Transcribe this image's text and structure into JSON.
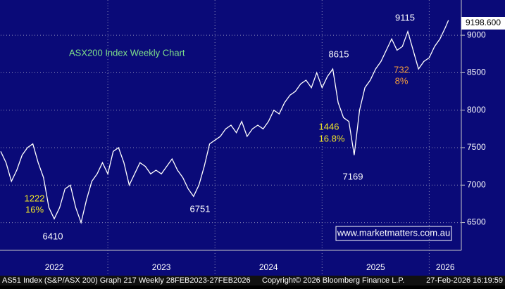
{
  "chart_data": {
    "type": "line",
    "title": "ASX200 Index Weekly Chart",
    "watermark": "www.marketmatters.com.au",
    "footer": [
      "AS51 Index (S&P/ASX 200) Graph 217 Weekly 28FEB2023-27FEB2026",
      "Copyright© 2026 Bloomberg Finance L.P.",
      "27-Feb-2026 16:19:59"
    ],
    "last_value_label": "9198.600",
    "annotations": [
      {
        "text": "9115",
        "kind": "peak"
      },
      {
        "text": "8615",
        "kind": "peak"
      },
      {
        "text": "732",
        "kind": "orange"
      },
      {
        "text": "8%",
        "kind": "orange"
      },
      {
        "text": "1446",
        "kind": "yellow"
      },
      {
        "text": "16.8%",
        "kind": "yellow"
      },
      {
        "text": "7169",
        "kind": "trough"
      },
      {
        "text": "1222",
        "kind": "yellow"
      },
      {
        "text": "16%",
        "kind": "yellow"
      },
      {
        "text": "6410",
        "kind": "trough"
      },
      {
        "text": "6751",
        "kind": "trough"
      }
    ],
    "x": [
      2022.0,
      2022.05,
      2022.1,
      2022.15,
      2022.2,
      2022.25,
      2022.3,
      2022.35,
      2022.4,
      2022.45,
      2022.5,
      2022.55,
      2022.6,
      2022.65,
      2022.7,
      2022.75,
      2022.8,
      2022.85,
      2022.9,
      2022.95,
      2023.0,
      2023.05,
      2023.1,
      2023.15,
      2023.2,
      2023.25,
      2023.3,
      2023.35,
      2023.4,
      2023.45,
      2023.5,
      2023.55,
      2023.6,
      2023.65,
      2023.7,
      2023.75,
      2023.8,
      2023.85,
      2023.9,
      2023.95,
      2024.0,
      2024.05,
      2024.1,
      2024.15,
      2024.2,
      2024.25,
      2024.3,
      2024.35,
      2024.4,
      2024.45,
      2024.5,
      2024.55,
      2024.6,
      2024.65,
      2024.7,
      2024.75,
      2024.8,
      2024.85,
      2024.9,
      2024.95,
      2025.0,
      2025.05,
      2025.1,
      2025.15,
      2025.2,
      2025.25,
      2025.3,
      2025.35,
      2025.4,
      2025.45,
      2025.5,
      2025.55,
      2025.6,
      2025.65,
      2025.7,
      2025.75,
      2025.8,
      2025.85,
      2025.9,
      2025.95,
      2026.0,
      2026.05,
      2026.1,
      2026.15,
      2026.18
    ],
    "series": [
      {
        "name": "AS51 Index",
        "color": "#ffffff",
        "values": [
          7450,
          7300,
          7050,
          7200,
          7400,
          7500,
          7550,
          7300,
          7100,
          6700,
          6550,
          6700,
          6950,
          7000,
          6700,
          6500,
          6800,
          7050,
          7150,
          7300,
          7150,
          7450,
          7500,
          7300,
          7000,
          7150,
          7300,
          7250,
          7150,
          7200,
          7150,
          7250,
          7350,
          7200,
          7100,
          6950,
          6850,
          7000,
          7250,
          7550,
          7600,
          7650,
          7750,
          7800,
          7700,
          7850,
          7650,
          7750,
          7800,
          7750,
          7850,
          8000,
          7950,
          8100,
          8200,
          8250,
          8350,
          8400,
          8300,
          8500,
          8300,
          8450,
          8550,
          8100,
          7900,
          7850,
          7400,
          8000,
          8300,
          8400,
          8550,
          8650,
          8800,
          8950,
          8800,
          8850,
          9050,
          8800,
          8550,
          8650,
          8700,
          8850,
          8950,
          9100,
          9198.6
        ]
      }
    ],
    "xlim": [
      2022,
      2026.3
    ],
    "xticks": [
      {
        "value": 2022.5,
        "label": "2022"
      },
      {
        "value": 2023.5,
        "label": "2023"
      },
      {
        "value": 2024.5,
        "label": "2024"
      },
      {
        "value": 2025.5,
        "label": "2025"
      },
      {
        "value": 2026.15,
        "label": "2026"
      }
    ],
    "ylim": [
      6130,
      9470
    ],
    "yticks": [
      6500,
      7000,
      7500,
      8000,
      8500,
      9000
    ],
    "grid": true
  }
}
